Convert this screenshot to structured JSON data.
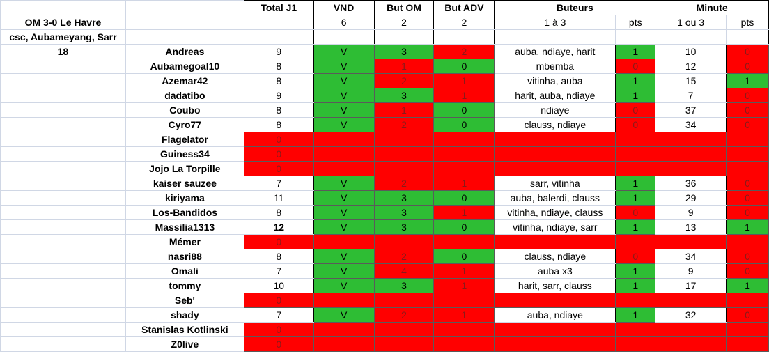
{
  "header": {
    "total": "Total J1",
    "vnd": "VND",
    "but_om": "But OM",
    "but_adv": "But ADV",
    "buteurs": "Buteurs",
    "minute": "Minute"
  },
  "answer": {
    "match": "OM 3-0 Le Havre",
    "scorers": "csc, Aubameyang, Sarr",
    "minute": "18",
    "vnd": "6",
    "but_om": "2",
    "but_adv": "2",
    "buteurs": "1 à 3",
    "pts": "pts",
    "minute_rule": "1 ou 3",
    "pts2": "pts"
  },
  "rows": [
    {
      "name": "Andreas",
      "total": "9",
      "vnd": "V",
      "om": "3",
      "adv": "2",
      "scorers": "auba, ndiaye, harit",
      "pts": "1",
      "minute": "10",
      "mpts": "0",
      "c": [
        "g",
        "g",
        "r",
        "w",
        "g",
        "w",
        "r"
      ]
    },
    {
      "name": "Aubamegoal10",
      "total": "8",
      "vnd": "V",
      "om": "1",
      "adv": "0",
      "scorers": "mbemba",
      "pts": "0",
      "minute": "12",
      "mpts": "0",
      "c": [
        "g",
        "r",
        "g",
        "w",
        "r",
        "w",
        "r"
      ]
    },
    {
      "name": "Azemar42",
      "total": "8",
      "vnd": "V",
      "om": "2",
      "adv": "1",
      "scorers": "vitinha, auba",
      "pts": "1",
      "minute": "15",
      "mpts": "1",
      "c": [
        "g",
        "r",
        "r",
        "w",
        "g",
        "w",
        "g"
      ]
    },
    {
      "name": "dadatibo",
      "total": "9",
      "vnd": "V",
      "om": "3",
      "adv": "1",
      "scorers": "harit, auba, ndiaye",
      "pts": "1",
      "minute": "7",
      "mpts": "0",
      "c": [
        "g",
        "g",
        "r",
        "w",
        "g",
        "w",
        "r"
      ]
    },
    {
      "name": "Coubo",
      "total": "8",
      "vnd": "V",
      "om": "1",
      "adv": "0",
      "scorers": "ndiaye",
      "pts": "0",
      "minute": "37",
      "mpts": "0",
      "c": [
        "g",
        "r",
        "g",
        "w",
        "r",
        "w",
        "r"
      ]
    },
    {
      "name": "Cyro77",
      "total": "8",
      "vnd": "V",
      "om": "2",
      "adv": "0",
      "scorers": "clauss, ndiaye",
      "pts": "0",
      "minute": "34",
      "mpts": "0",
      "c": [
        "g",
        "r",
        "g",
        "w",
        "r",
        "w",
        "r"
      ]
    },
    {
      "name": "Flagelator",
      "total": "0",
      "empty": true
    },
    {
      "name": "Guiness34",
      "total": "0",
      "empty": true
    },
    {
      "name": "Jojo La Torpille",
      "total": "0",
      "empty": true
    },
    {
      "name": "kaiser sauzee",
      "total": "7",
      "vnd": "V",
      "om": "2",
      "adv": "1",
      "scorers": "sarr, vitinha",
      "pts": "1",
      "minute": "36",
      "mpts": "0",
      "c": [
        "g",
        "r",
        "r",
        "w",
        "g",
        "w",
        "r"
      ]
    },
    {
      "name": "kiriyama",
      "total": "11",
      "vnd": "V",
      "om": "3",
      "adv": "0",
      "scorers": "auba, balerdi, clauss",
      "pts": "1",
      "minute": "29",
      "mpts": "0",
      "c": [
        "g",
        "g",
        "g",
        "w",
        "g",
        "w",
        "r"
      ]
    },
    {
      "name": "Los-Bandidos",
      "total": "8",
      "vnd": "V",
      "om": "3",
      "adv": "1",
      "scorers": "vitinha, ndiaye, clauss",
      "pts": "0",
      "minute": "9",
      "mpts": "0",
      "c": [
        "g",
        "g",
        "r",
        "w",
        "r",
        "w",
        "r"
      ]
    },
    {
      "name": "Massilia1313",
      "total": "12",
      "bold_total": true,
      "vnd": "V",
      "om": "3",
      "adv": "0",
      "scorers": "vitinha, ndiaye, sarr",
      "pts": "1",
      "minute": "13",
      "mpts": "1",
      "c": [
        "g",
        "g",
        "g",
        "w",
        "g",
        "w",
        "g"
      ]
    },
    {
      "name": "Mémer",
      "total": "0",
      "empty": true
    },
    {
      "name": "nasri88",
      "total": "8",
      "vnd": "V",
      "om": "2",
      "adv": "0",
      "scorers": "clauss, ndiaye",
      "pts": "0",
      "minute": "34",
      "mpts": "0",
      "c": [
        "g",
        "r",
        "g",
        "w",
        "r",
        "w",
        "r"
      ]
    },
    {
      "name": "Omali",
      "total": "7",
      "vnd": "V",
      "om": "4",
      "adv": "1",
      "scorers": "auba x3",
      "pts": "1",
      "minute": "9",
      "mpts": "0",
      "c": [
        "g",
        "r",
        "r",
        "w",
        "g",
        "w",
        "r"
      ]
    },
    {
      "name": "tommy",
      "total": "10",
      "vnd": "V",
      "om": "3",
      "adv": "1",
      "scorers": "harit, sarr, clauss",
      "pts": "1",
      "minute": "17",
      "mpts": "1",
      "c": [
        "g",
        "g",
        "r",
        "w",
        "g",
        "w",
        "g"
      ]
    },
    {
      "name": "Seb'",
      "total": "0",
      "empty": true
    },
    {
      "name": "shady",
      "total": "7",
      "vnd": "V",
      "om": "2",
      "adv": "1",
      "scorers": "auba, ndiaye",
      "pts": "1",
      "minute": "32",
      "mpts": "0",
      "c": [
        "g",
        "r",
        "r",
        "w",
        "g",
        "w",
        "r"
      ]
    },
    {
      "name": "Stanislas Kotlinski",
      "total": "0",
      "empty": true
    },
    {
      "name": "Z0live",
      "total": "0",
      "empty": true
    }
  ]
}
